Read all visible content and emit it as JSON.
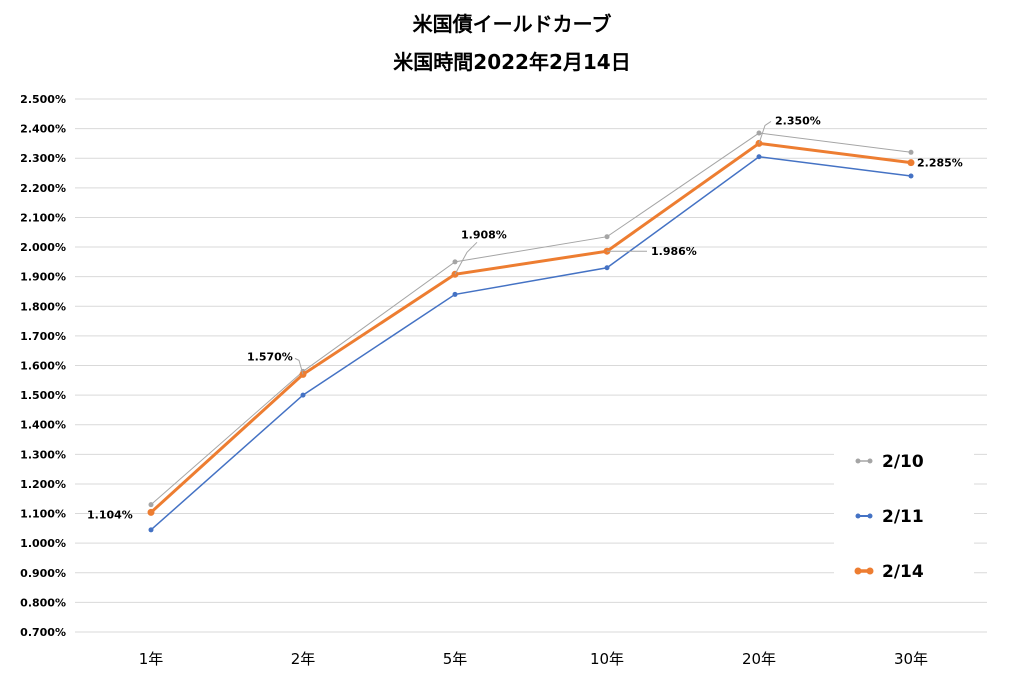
{
  "chart_data": {
    "type": "line",
    "title": "米国債イールドカーブ",
    "subtitle": "米国時間2022年2月14日",
    "categories": [
      "1年",
      "2年",
      "5年",
      "10年",
      "20年",
      "30年"
    ],
    "yticks": [
      "0.700%",
      "0.800%",
      "0.900%",
      "1.000%",
      "1.100%",
      "1.200%",
      "1.300%",
      "1.400%",
      "1.500%",
      "1.600%",
      "1.700%",
      "1.800%",
      "1.900%",
      "2.000%",
      "2.100%",
      "2.200%",
      "2.300%",
      "2.400%",
      "2.500%"
    ],
    "ylim": [
      0.7,
      2.5
    ],
    "grid": true,
    "legend_position": "bottom-right",
    "series": [
      {
        "name": "2/10",
        "color": "#A5A5A5",
        "values": [
          1.13,
          1.58,
          1.95,
          2.035,
          2.385,
          2.32
        ]
      },
      {
        "name": "2/11",
        "color": "#4472C4",
        "values": [
          1.045,
          1.5,
          1.84,
          1.93,
          2.305,
          2.24
        ]
      },
      {
        "name": "2/14",
        "color": "#ED7D31",
        "values": [
          1.104,
          1.57,
          1.908,
          1.986,
          2.35,
          2.285
        ]
      }
    ],
    "data_labels": [
      "1.104%",
      "1.570%",
      "1.908%",
      "1.986%",
      "2.350%",
      "2.285%"
    ]
  }
}
